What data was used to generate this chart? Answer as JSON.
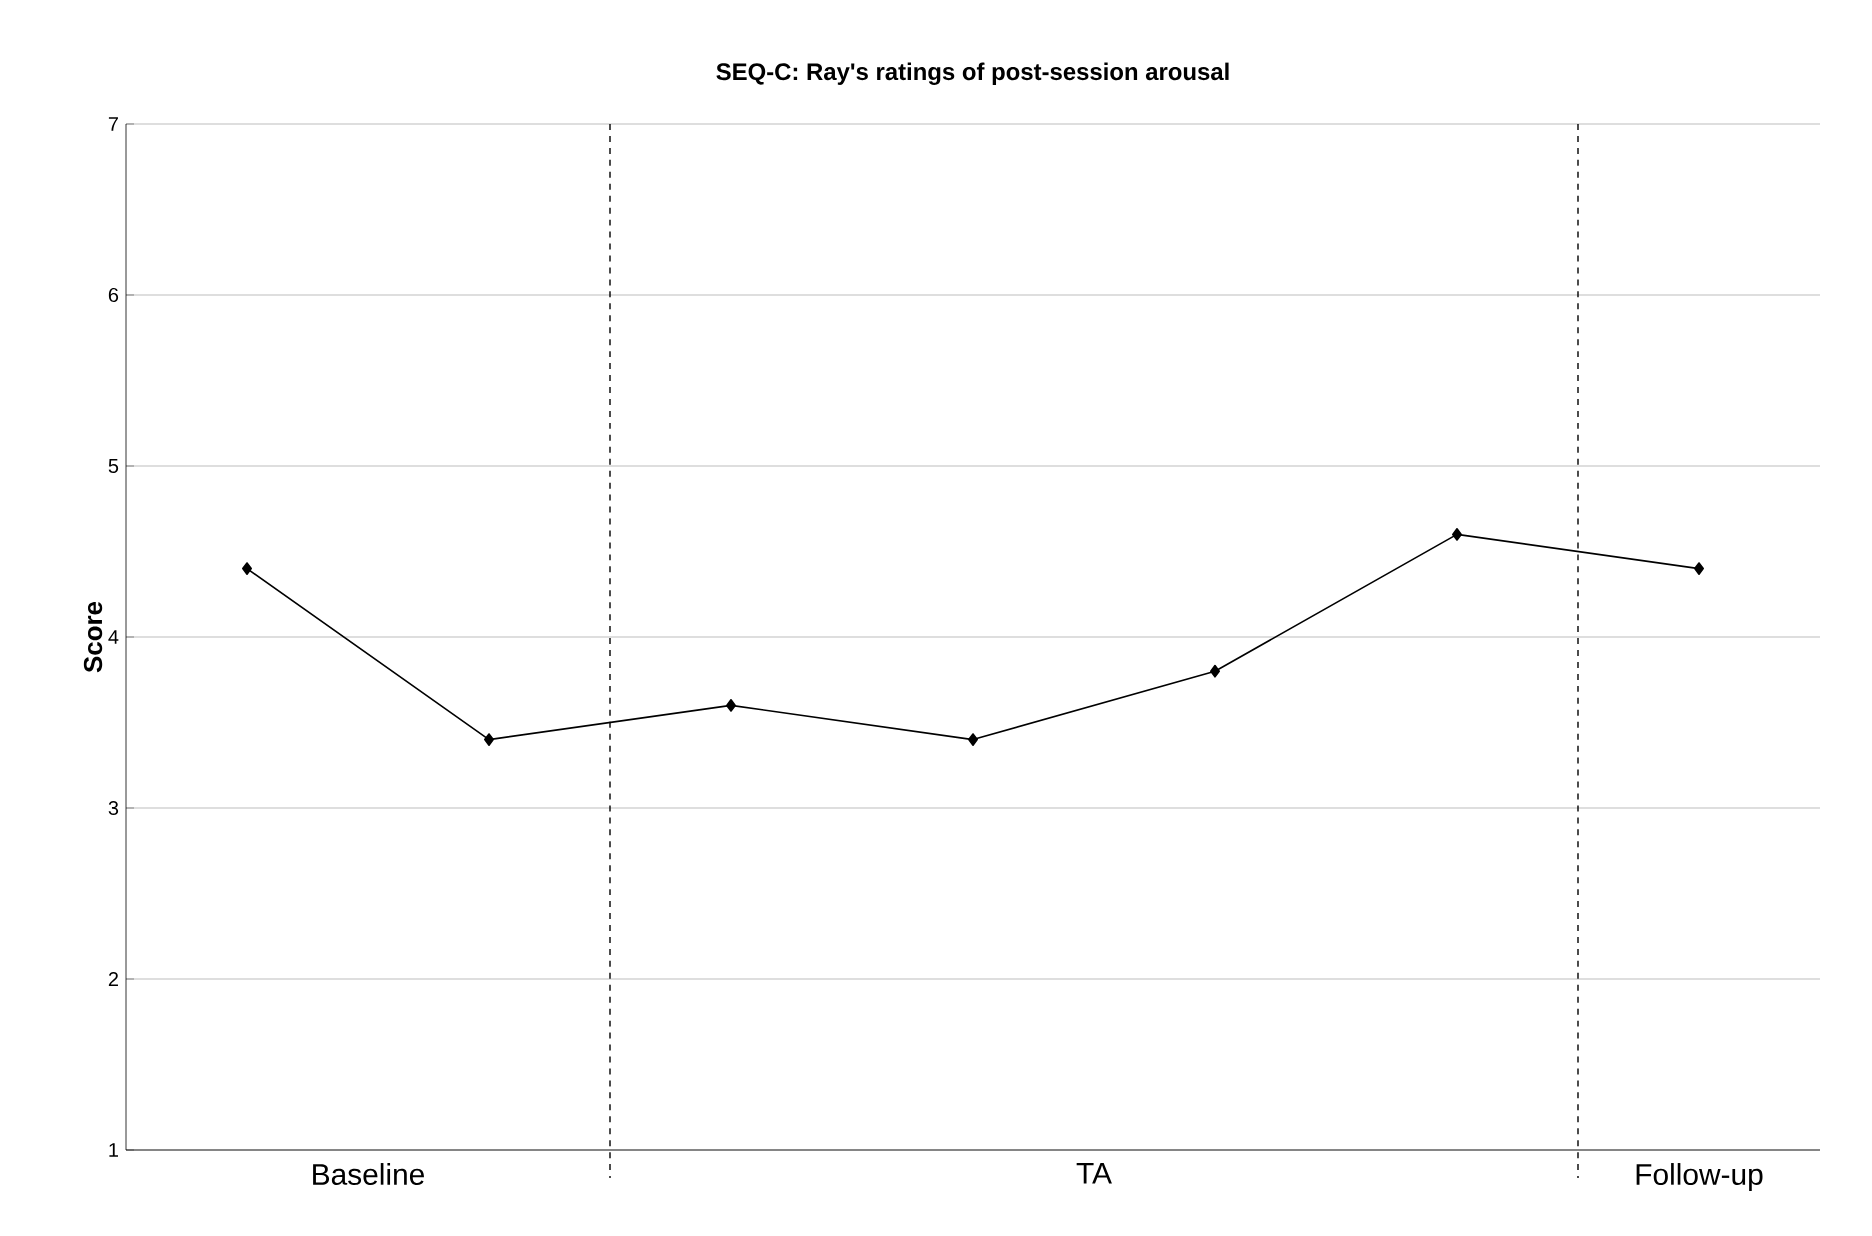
{
  "chart_data": {
    "type": "line",
    "title": "SEQ-C: Ray's ratings of post-session arousal",
    "ylabel": "Score",
    "categories": [
      null,
      null,
      null,
      null,
      null,
      null,
      null
    ],
    "series": [
      {
        "color": "#000000",
        "values": [
          4.4,
          3.4,
          3.6,
          3.4,
          3.8,
          4.6,
          4.4
        ]
      }
    ],
    "ylim": [
      1,
      7
    ],
    "yticks": [
      1,
      2,
      3,
      4,
      5,
      6,
      7
    ],
    "annotations": [
      "Baseline",
      "TA",
      "Follow-up"
    ],
    "grid": "y",
    "marker": "diamond",
    "line_style": "solid"
  }
}
